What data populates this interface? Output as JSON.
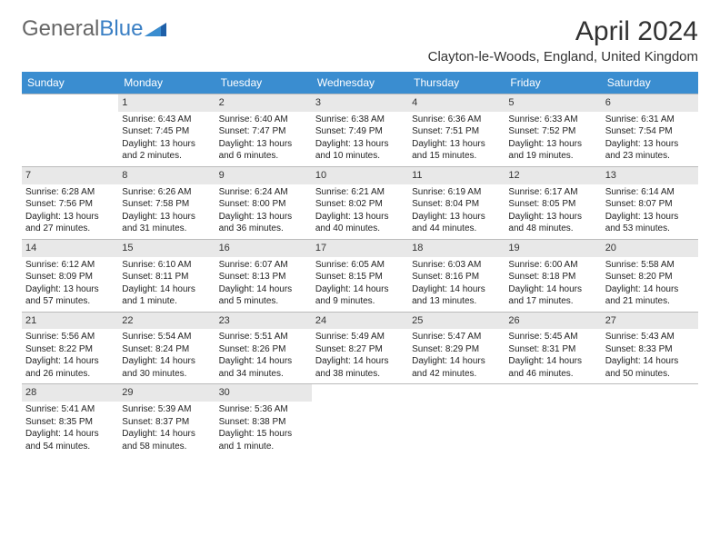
{
  "logo": {
    "text_general": "General",
    "text_blue": "Blue"
  },
  "month_title": "April 2024",
  "location": "Clayton-le-Woods, England, United Kingdom",
  "colors": {
    "header_bg": "#3a8dd0",
    "header_text": "#ffffff",
    "shade_bg": "#e8e8e8",
    "border": "#bbbbbb",
    "text": "#222222",
    "logo_blue": "#3a7fc4"
  },
  "day_names": [
    "Sunday",
    "Monday",
    "Tuesday",
    "Wednesday",
    "Thursday",
    "Friday",
    "Saturday"
  ],
  "weeks": [
    [
      {
        "n": "",
        "lines": []
      },
      {
        "n": "1",
        "lines": [
          "Sunrise: 6:43 AM",
          "Sunset: 7:45 PM",
          "Daylight: 13 hours and 2 minutes."
        ]
      },
      {
        "n": "2",
        "lines": [
          "Sunrise: 6:40 AM",
          "Sunset: 7:47 PM",
          "Daylight: 13 hours and 6 minutes."
        ]
      },
      {
        "n": "3",
        "lines": [
          "Sunrise: 6:38 AM",
          "Sunset: 7:49 PM",
          "Daylight: 13 hours and 10 minutes."
        ]
      },
      {
        "n": "4",
        "lines": [
          "Sunrise: 6:36 AM",
          "Sunset: 7:51 PM",
          "Daylight: 13 hours and 15 minutes."
        ]
      },
      {
        "n": "5",
        "lines": [
          "Sunrise: 6:33 AM",
          "Sunset: 7:52 PM",
          "Daylight: 13 hours and 19 minutes."
        ]
      },
      {
        "n": "6",
        "lines": [
          "Sunrise: 6:31 AM",
          "Sunset: 7:54 PM",
          "Daylight: 13 hours and 23 minutes."
        ]
      }
    ],
    [
      {
        "n": "7",
        "lines": [
          "Sunrise: 6:28 AM",
          "Sunset: 7:56 PM",
          "Daylight: 13 hours and 27 minutes."
        ]
      },
      {
        "n": "8",
        "lines": [
          "Sunrise: 6:26 AM",
          "Sunset: 7:58 PM",
          "Daylight: 13 hours and 31 minutes."
        ]
      },
      {
        "n": "9",
        "lines": [
          "Sunrise: 6:24 AM",
          "Sunset: 8:00 PM",
          "Daylight: 13 hours and 36 minutes."
        ]
      },
      {
        "n": "10",
        "lines": [
          "Sunrise: 6:21 AM",
          "Sunset: 8:02 PM",
          "Daylight: 13 hours and 40 minutes."
        ]
      },
      {
        "n": "11",
        "lines": [
          "Sunrise: 6:19 AM",
          "Sunset: 8:04 PM",
          "Daylight: 13 hours and 44 minutes."
        ]
      },
      {
        "n": "12",
        "lines": [
          "Sunrise: 6:17 AM",
          "Sunset: 8:05 PM",
          "Daylight: 13 hours and 48 minutes."
        ]
      },
      {
        "n": "13",
        "lines": [
          "Sunrise: 6:14 AM",
          "Sunset: 8:07 PM",
          "Daylight: 13 hours and 53 minutes."
        ]
      }
    ],
    [
      {
        "n": "14",
        "lines": [
          "Sunrise: 6:12 AM",
          "Sunset: 8:09 PM",
          "Daylight: 13 hours and 57 minutes."
        ]
      },
      {
        "n": "15",
        "lines": [
          "Sunrise: 6:10 AM",
          "Sunset: 8:11 PM",
          "Daylight: 14 hours and 1 minute."
        ]
      },
      {
        "n": "16",
        "lines": [
          "Sunrise: 6:07 AM",
          "Sunset: 8:13 PM",
          "Daylight: 14 hours and 5 minutes."
        ]
      },
      {
        "n": "17",
        "lines": [
          "Sunrise: 6:05 AM",
          "Sunset: 8:15 PM",
          "Daylight: 14 hours and 9 minutes."
        ]
      },
      {
        "n": "18",
        "lines": [
          "Sunrise: 6:03 AM",
          "Sunset: 8:16 PM",
          "Daylight: 14 hours and 13 minutes."
        ]
      },
      {
        "n": "19",
        "lines": [
          "Sunrise: 6:00 AM",
          "Sunset: 8:18 PM",
          "Daylight: 14 hours and 17 minutes."
        ]
      },
      {
        "n": "20",
        "lines": [
          "Sunrise: 5:58 AM",
          "Sunset: 8:20 PM",
          "Daylight: 14 hours and 21 minutes."
        ]
      }
    ],
    [
      {
        "n": "21",
        "lines": [
          "Sunrise: 5:56 AM",
          "Sunset: 8:22 PM",
          "Daylight: 14 hours and 26 minutes."
        ]
      },
      {
        "n": "22",
        "lines": [
          "Sunrise: 5:54 AM",
          "Sunset: 8:24 PM",
          "Daylight: 14 hours and 30 minutes."
        ]
      },
      {
        "n": "23",
        "lines": [
          "Sunrise: 5:51 AM",
          "Sunset: 8:26 PM",
          "Daylight: 14 hours and 34 minutes."
        ]
      },
      {
        "n": "24",
        "lines": [
          "Sunrise: 5:49 AM",
          "Sunset: 8:27 PM",
          "Daylight: 14 hours and 38 minutes."
        ]
      },
      {
        "n": "25",
        "lines": [
          "Sunrise: 5:47 AM",
          "Sunset: 8:29 PM",
          "Daylight: 14 hours and 42 minutes."
        ]
      },
      {
        "n": "26",
        "lines": [
          "Sunrise: 5:45 AM",
          "Sunset: 8:31 PM",
          "Daylight: 14 hours and 46 minutes."
        ]
      },
      {
        "n": "27",
        "lines": [
          "Sunrise: 5:43 AM",
          "Sunset: 8:33 PM",
          "Daylight: 14 hours and 50 minutes."
        ]
      }
    ],
    [
      {
        "n": "28",
        "lines": [
          "Sunrise: 5:41 AM",
          "Sunset: 8:35 PM",
          "Daylight: 14 hours and 54 minutes."
        ]
      },
      {
        "n": "29",
        "lines": [
          "Sunrise: 5:39 AM",
          "Sunset: 8:37 PM",
          "Daylight: 14 hours and 58 minutes."
        ]
      },
      {
        "n": "30",
        "lines": [
          "Sunrise: 5:36 AM",
          "Sunset: 8:38 PM",
          "Daylight: 15 hours and 1 minute."
        ]
      },
      {
        "n": "",
        "lines": []
      },
      {
        "n": "",
        "lines": []
      },
      {
        "n": "",
        "lines": []
      },
      {
        "n": "",
        "lines": []
      }
    ]
  ]
}
